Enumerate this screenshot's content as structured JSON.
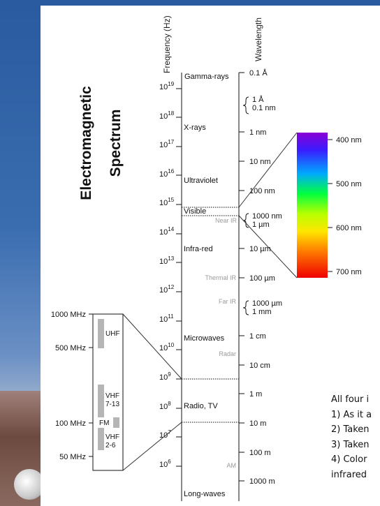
{
  "title_line1": "Electromagnetic",
  "title_line2": "Spectrum",
  "axis_frequency": "Frequency (Hz)",
  "axis_wavelength": "Wavelength",
  "freq_base": "10",
  "freq_exponents": [
    "19",
    "18",
    "17",
    "16",
    "15",
    "14",
    "13",
    "12",
    "11",
    "10",
    "9",
    "8",
    "7",
    "6"
  ],
  "bands": {
    "gamma": "Gamma-rays",
    "xray": "X-rays",
    "uv": "Ultraviolet",
    "visible": "Visible",
    "near_ir": "Near IR",
    "infrared": "Infra-red",
    "thermal_ir": "Thermal IR",
    "far_ir": "Far IR",
    "microwaves": "Microwaves",
    "radar": "Radar",
    "radio_tv": "Radio, TV",
    "am": "AM",
    "longwaves": "Long-waves"
  },
  "wavelengths": {
    "w01a": "0.1 Å",
    "w1a_a": "1 Å",
    "w1a_b": "0.1 nm",
    "w1nm": "1 nm",
    "w10nm": "10 nm",
    "w100nm": "100 nm",
    "w1000nm_a": "1000 nm",
    "w1000nm_b": "1 µm",
    "w10um": "10 µm",
    "w100um": "100 µm",
    "w1000um_a": "1000 µm",
    "w1000um_b": "1 mm",
    "w1cm": "1 cm",
    "w10cm": "10 cm",
    "w1m": "1 m",
    "w10m": "10 m",
    "w100m": "100 m",
    "w1000m": "1000 m"
  },
  "visible_scale": [
    "400 nm",
    "500 nm",
    "600 nm",
    "700 nm"
  ],
  "mhz_scale": [
    "1000 MHz",
    "500 MHz",
    "100 MHz",
    "50 MHz"
  ],
  "radio_bands": {
    "uhf": "UHF",
    "vhf1_a": "VHF",
    "vhf1_b": "7-13",
    "fm": "FM",
    "vhf2_a": "VHF",
    "vhf2_b": "2-6"
  },
  "side_text": [
    "All four i",
    "1) As it a",
    "2) Taken",
    "3) Taken",
    "4) Color",
    "infrared"
  ]
}
